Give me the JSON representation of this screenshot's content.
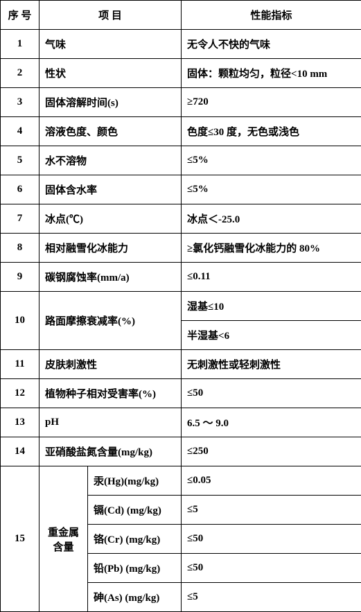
{
  "header": {
    "c0": "序  号",
    "c1": "项            目",
    "c2": "性能指标"
  },
  "rows": [
    {
      "n": "1",
      "p": "气味",
      "v": "无令人不快的气味"
    },
    {
      "n": "2",
      "p": "性状",
      "v": "固体：颗粒均匀，粒径<10 mm"
    },
    {
      "n": "3",
      "p": "固体溶解时间(s)",
      "v": "≥720"
    },
    {
      "n": "4",
      "p": "溶液色度、颜色",
      "v": "色度≤30 度，无色或浅色"
    },
    {
      "n": "5",
      "p": "水不溶物",
      "v": "≤5%"
    },
    {
      "n": "6",
      "p": "固体含水率",
      "v": "≤5%"
    },
    {
      "n": "7",
      "p": "冰点(℃)",
      "v": "冰点＜-25.0"
    },
    {
      "n": "8",
      "p": "相对融雪化冰能力",
      "v": "≥氯化钙融雪化冰能力的 80%"
    },
    {
      "n": "9",
      "p": "碳钢腐蚀率(mm/a)",
      "v": "≤0.11"
    }
  ],
  "row10": {
    "n": "10",
    "p": "路面摩擦衰减率(%)",
    "v1": "湿基≤10",
    "v2": "半湿基<6"
  },
  "rows2": [
    {
      "n": "11",
      "p": "皮肤刺激性",
      "v": "无刺激性或轻刺激性"
    },
    {
      "n": "12",
      "p": "植物种子相对受害率(%)",
      "v": "≤50"
    },
    {
      "n": "13",
      "p": "pH",
      "v": "6.5  ～  9.0"
    },
    {
      "n": "14",
      "p": "亚硝酸盐氮含量(mg/kg)",
      "v": "≤250"
    }
  ],
  "row15": {
    "n": "15",
    "group": "重金属含量",
    "items": [
      {
        "p": "汞(Hg)(mg/kg)",
        "v": "≤0.05"
      },
      {
        "p": "镉(Cd) (mg/kg)",
        "v": "≤5"
      },
      {
        "p": "铬(Cr) (mg/kg)",
        "v": "≤50"
      },
      {
        "p": "铅(Pb) (mg/kg)",
        "v": "≤50"
      },
      {
        "p": "砷(As) (mg/kg)",
        "v": "≤5"
      }
    ]
  }
}
